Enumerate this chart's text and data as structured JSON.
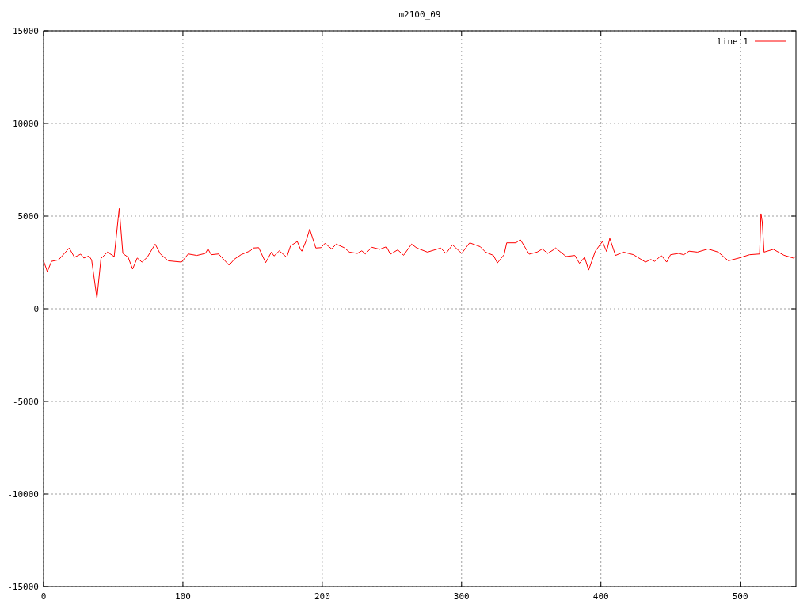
{
  "chart_data": {
    "type": "line",
    "title": "m2100_09",
    "xlim": [
      0,
      540
    ],
    "ylim": [
      -15000,
      15000
    ],
    "xticks": [
      0,
      100,
      200,
      300,
      400,
      500
    ],
    "yticks": [
      -15000,
      -10000,
      -5000,
      0,
      5000,
      10000,
      15000
    ],
    "grid": true,
    "legend": "top right",
    "marker": "none",
    "line_style": "solid",
    "series": [
      {
        "name": "line 1",
        "color": "#ff0000",
        "x": [
          0,
          2.7,
          5.7,
          10.8,
          18.4,
          22.2,
          26.6,
          28.9,
          32.6,
          34.5,
          38.3,
          41.2,
          45.9,
          50.7,
          53.5,
          54.3,
          56.9,
          60.7,
          63.9,
          67.2,
          70.6,
          74.4,
          80.1,
          83.8,
          89.5,
          99,
          103.8,
          110,
          116.1,
          118,
          120.3,
          125.6,
          133.2,
          137,
          141.7,
          148.4,
          150.6,
          154.4,
          159.4,
          163.5,
          165.4,
          169.2,
          174.5,
          177.2,
          182.1,
          184.4,
          185.4,
          188.6,
          191,
          195.4,
          199.2,
          201.9,
          206.8,
          210,
          215.7,
          219.5,
          225.2,
          228.4,
          230.9,
          235.6,
          241.3,
          246.1,
          248.9,
          254.2,
          258.4,
          264.1,
          267.9,
          275.5,
          285,
          288.8,
          293.5,
          300.1,
          305.8,
          313.4,
          317.2,
          322.9,
          325.7,
          330.5,
          332.4,
          339,
          342.2,
          348.5,
          354.2,
          358,
          361.8,
          366.5,
          367.5,
          375.1,
          381.3,
          384.6,
          388.3,
          391.2,
          396,
          399.7,
          401.1,
          404.1,
          406.4,
          410.5,
          416.2,
          423.4,
          432,
          435.8,
          438.6,
          443.4,
          447.2,
          450,
          455.7,
          459.5,
          463.3,
          469.3,
          476.9,
          484.2,
          491.5,
          499.1,
          506.7,
          513.9,
          514.9,
          515.8,
          517.1,
          523.8,
          531.4,
          538,
          540
        ],
        "values": [
          2590,
          2000,
          2560,
          2640,
          3280,
          2780,
          2950,
          2740,
          2850,
          2640,
          570,
          2710,
          3060,
          2820,
          4840,
          5410,
          2990,
          2780,
          2140,
          2740,
          2520,
          2780,
          3490,
          2960,
          2590,
          2520,
          2960,
          2880,
          2990,
          3230,
          2920,
          2960,
          2350,
          2680,
          2920,
          3130,
          3280,
          3300,
          2490,
          3060,
          2850,
          3130,
          2780,
          3390,
          3630,
          3210,
          3110,
          3700,
          4300,
          3280,
          3300,
          3530,
          3230,
          3490,
          3300,
          3060,
          2990,
          3130,
          2960,
          3320,
          3210,
          3350,
          2950,
          3180,
          2890,
          3490,
          3280,
          3060,
          3280,
          2990,
          3450,
          2990,
          3560,
          3350,
          3060,
          2880,
          2470,
          2920,
          3560,
          3560,
          3730,
          2950,
          3060,
          3230,
          2990,
          3210,
          3280,
          2820,
          2880,
          2450,
          2780,
          2090,
          3110,
          3490,
          3630,
          3090,
          3800,
          2880,
          3060,
          2920,
          2520,
          2660,
          2560,
          2880,
          2520,
          2920,
          2990,
          2920,
          3110,
          3060,
          3230,
          3060,
          2590,
          2740,
          2920,
          2960,
          5130,
          4700,
          3060,
          3210,
          2890,
          2740,
          2820
        ]
      }
    ]
  }
}
